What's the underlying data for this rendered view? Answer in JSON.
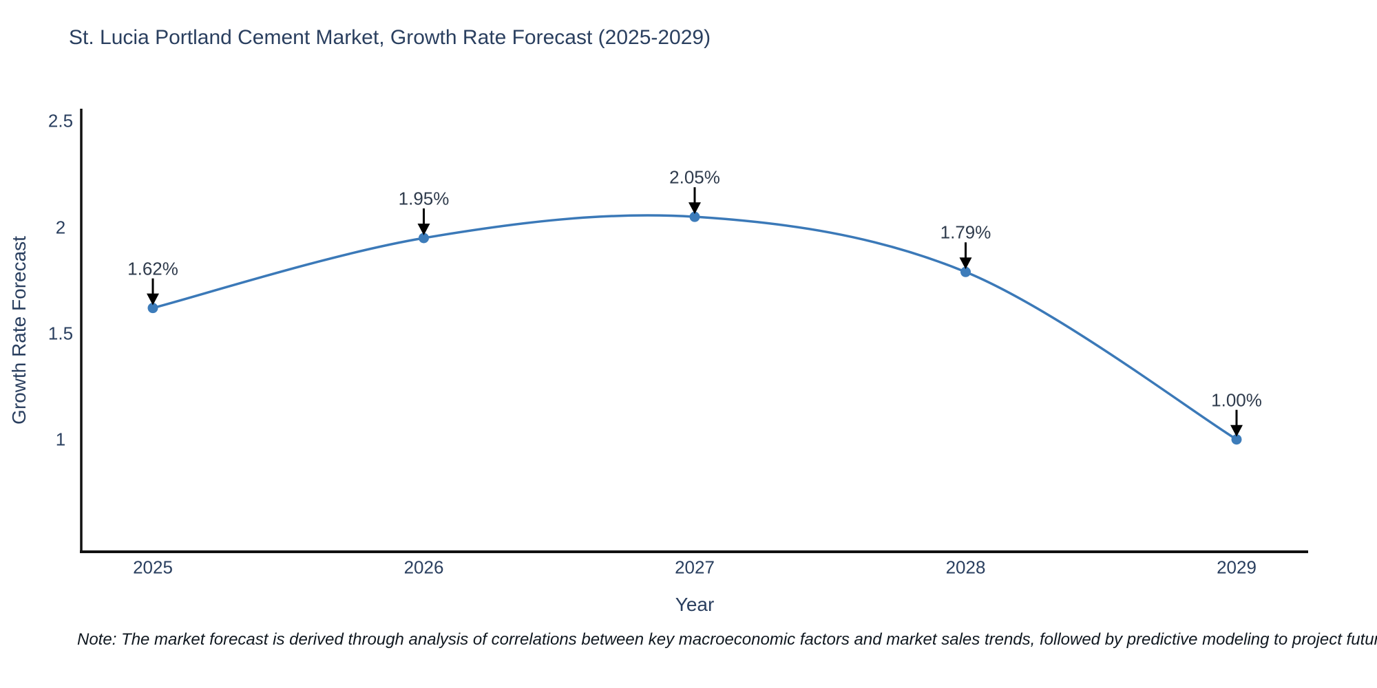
{
  "title": "St. Lucia Portland Cement Market, Growth Rate Forecast (2025-2029)",
  "footnote": "Note: The market forecast is derived through analysis of correlations between key macroeconomic factors and market sales trends, followed by predictive modeling to project future sales",
  "colors": {
    "line": "#3b79b8",
    "marker": "#3d7cba",
    "arrow": "#000000",
    "axis_line": "#111111",
    "title_text": "#2a3f5f",
    "tick_text": "#2a3f5f",
    "annotation_text": "#2f3b4c"
  },
  "chart_data": {
    "type": "line",
    "line_shape": "spline",
    "x": [
      2025,
      2026,
      2027,
      2028,
      2029
    ],
    "values": [
      1.62,
      1.95,
      2.05,
      1.79,
      1.0
    ],
    "point_labels": [
      "1.62%",
      "1.95%",
      "2.05%",
      "1.79%",
      "1.00%"
    ],
    "xticks": [
      "2025",
      "2026",
      "2027",
      "2028",
      "2029"
    ],
    "yticks": [
      1,
      1.5,
      2,
      2.5
    ],
    "ytick_labels": [
      "1",
      "1.5",
      "2",
      "2.5"
    ],
    "ylim": [
      0.47,
      2.56
    ],
    "title": "St. Lucia Portland Cement Market, Growth Rate Forecast (2025-2029)",
    "xlabel": "Year",
    "ylabel": "Growth Rate Forecast",
    "grid": false,
    "legend": false,
    "marker_size": 15,
    "annotations_have_arrows": true
  }
}
